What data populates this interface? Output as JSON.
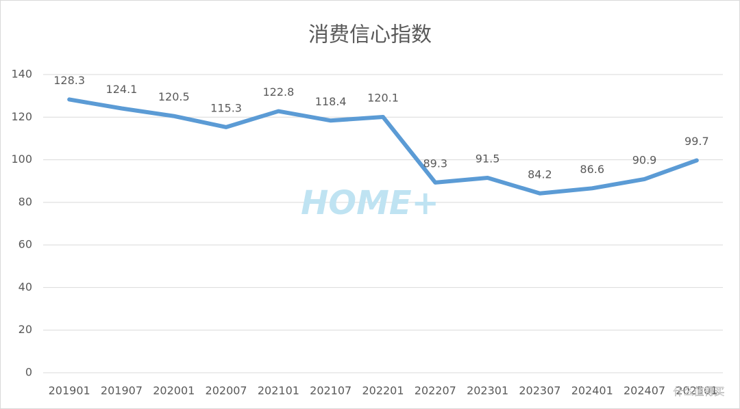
{
  "chart_data": {
    "type": "line",
    "title": "消费信心指数",
    "categories": [
      "201901",
      "201907",
      "202001",
      "202007",
      "202101",
      "202107",
      "202201",
      "202207",
      "202301",
      "202307",
      "202401",
      "202407",
      "202501"
    ],
    "series": [
      {
        "name": "消费信心指数",
        "color": "#5b9bd5",
        "values": [
          128.3,
          124.1,
          120.5,
          115.3,
          122.8,
          118.4,
          120.1,
          89.3,
          91.5,
          84.2,
          86.6,
          90.9,
          99.7
        ]
      }
    ],
    "ylim": [
      0,
      140
    ],
    "yticks": [
      0,
      20,
      40,
      60,
      80,
      100,
      120,
      140
    ],
    "grid": true,
    "watermarks": [
      "HOME+",
      "什么值得买"
    ]
  }
}
